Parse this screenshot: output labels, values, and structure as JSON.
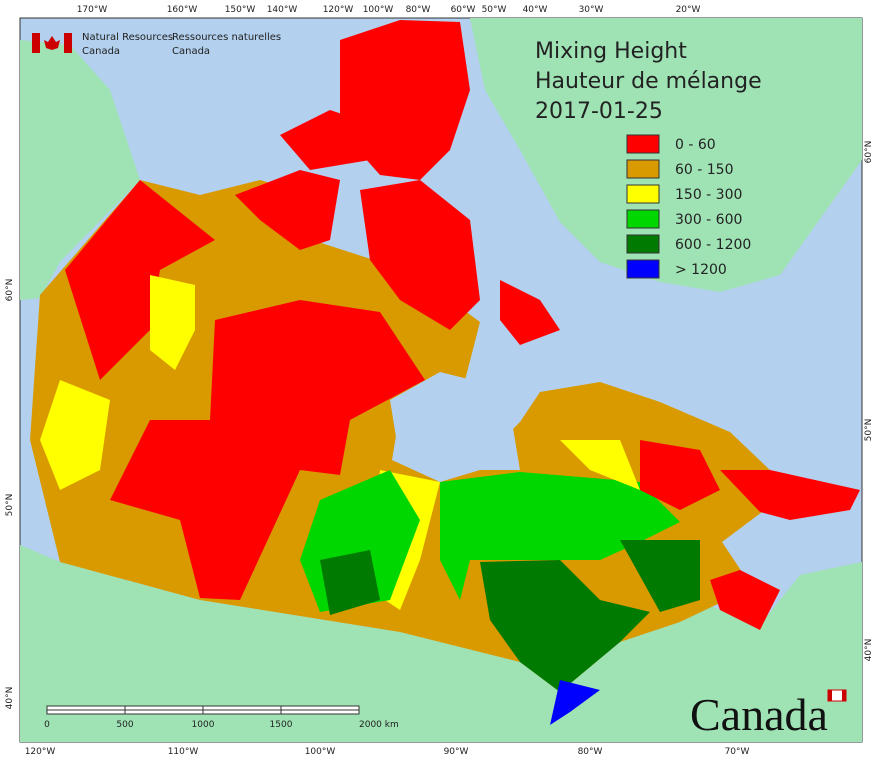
{
  "header": {
    "agency_en": [
      "Natural Resources",
      "Canada"
    ],
    "agency_fr": [
      "Ressources naturelles",
      "Canada"
    ]
  },
  "title": [
    "Mixing Height",
    "Hauteur de mélange",
    "2017-01-25"
  ],
  "legend": [
    {
      "label": "0 - 60",
      "color": "#ff0000"
    },
    {
      "label": "60 - 150",
      "color": "#d99a00"
    },
    {
      "label": "150 - 300",
      "color": "#ffff00"
    },
    {
      "label": "300 - 600",
      "color": "#00d600"
    },
    {
      "label": "600 - 1200",
      "color": "#007a00"
    },
    {
      "label": "> 1200",
      "color": "#0000ff"
    }
  ],
  "graticule": {
    "top": [
      "170°W",
      "160°W",
      "150°W",
      "140°W",
      "120°W",
      "100°W",
      "80°W",
      "60°W",
      "50°W",
      "40°W",
      "30°W",
      "20°W"
    ],
    "bottom": [
      "120°W",
      "110°W",
      "100°W",
      "90°W",
      "80°W",
      "70°W"
    ],
    "left": [
      "60°N",
      "50°N",
      "40°N"
    ],
    "right": [
      "60°N",
      "50°N",
      "40°N"
    ]
  },
  "scale_bar": [
    "0",
    "500",
    "1000",
    "1500",
    "2000 km"
  ],
  "wordmark": "Canada"
}
